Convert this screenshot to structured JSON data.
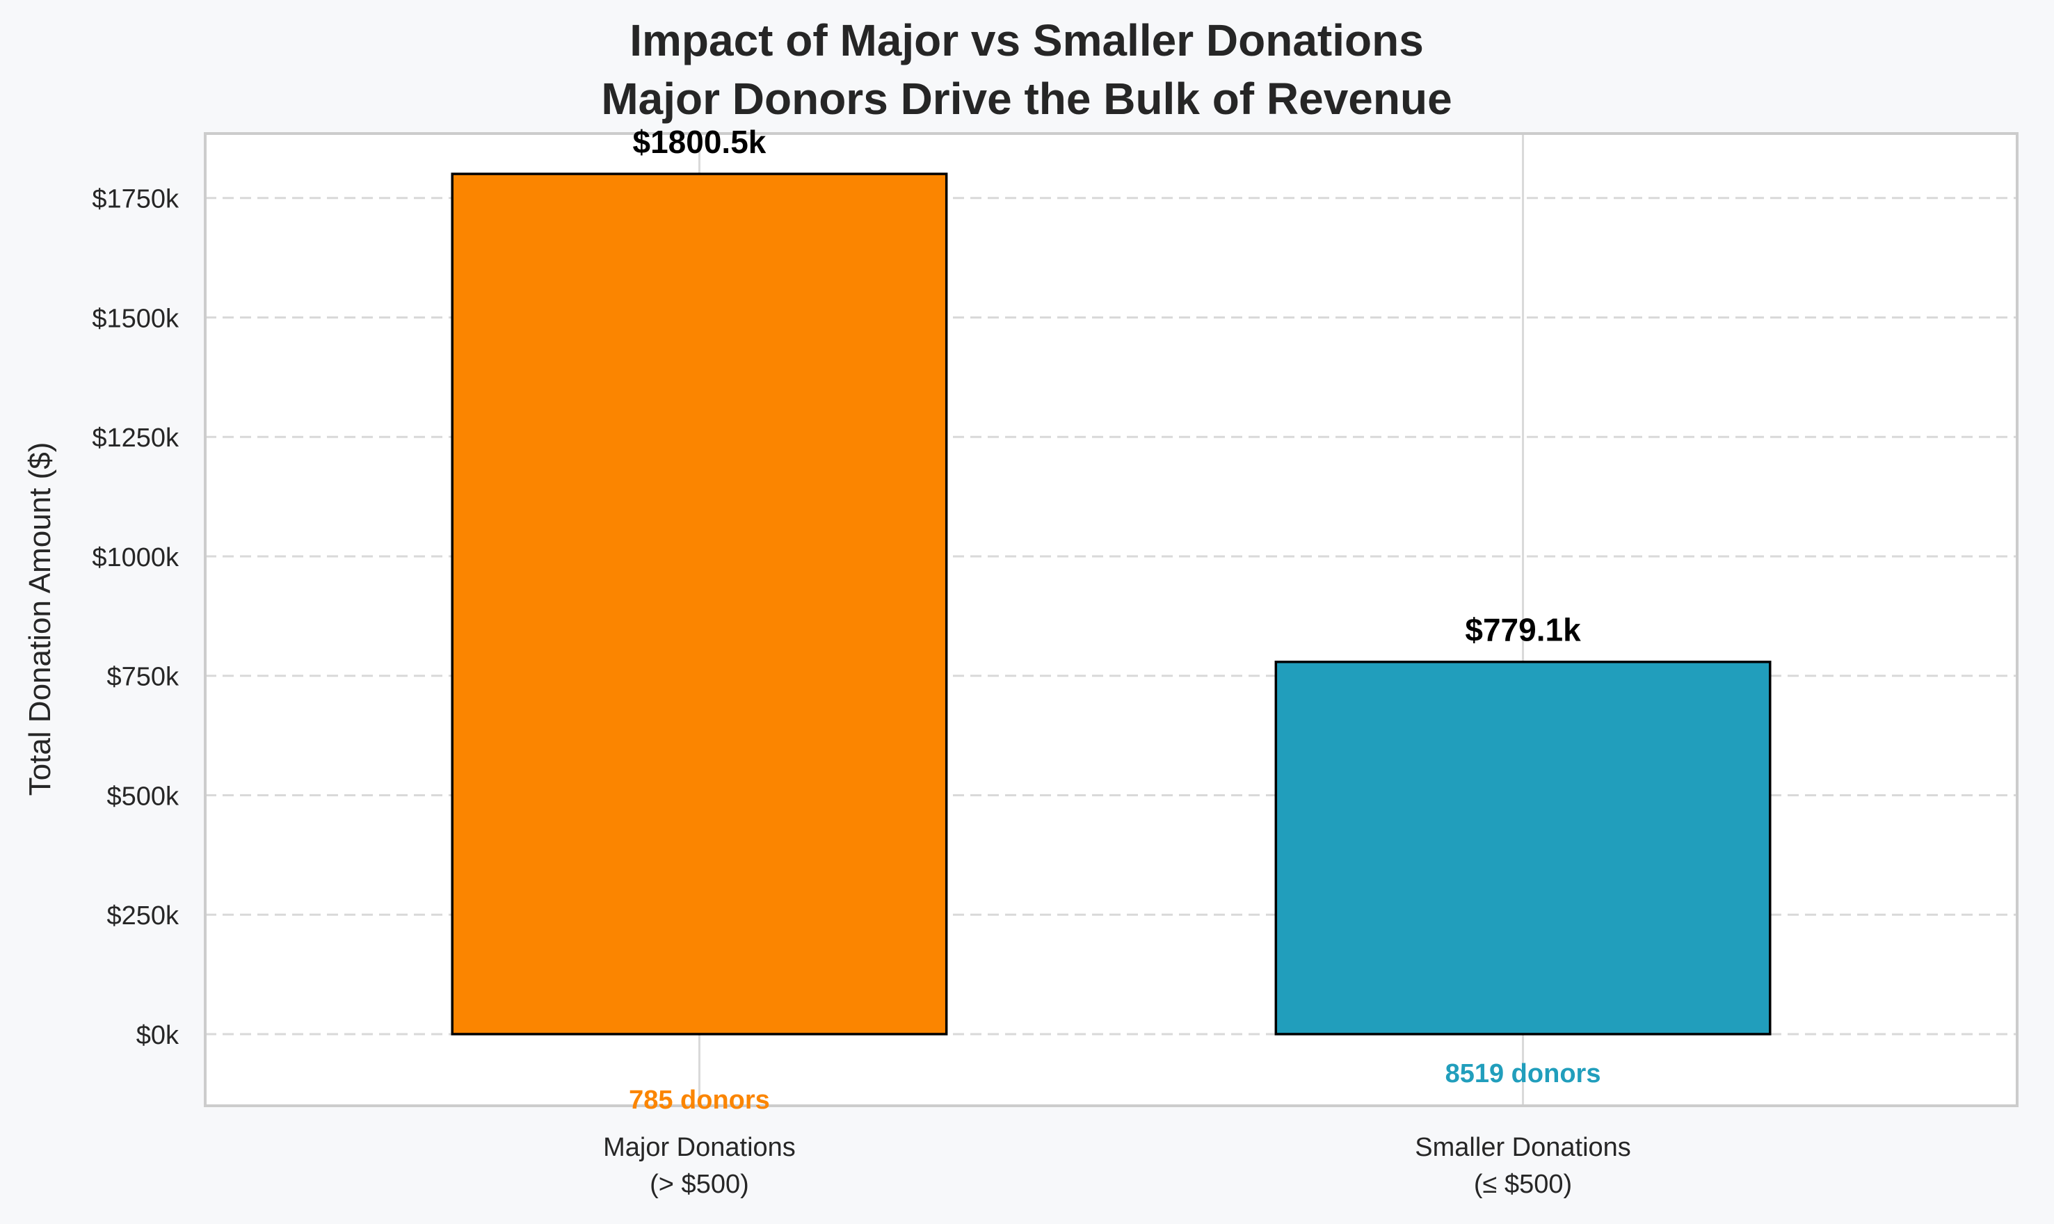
{
  "chart_data": {
    "type": "bar",
    "title": [
      "Impact of Major vs Smaller Donations",
      "Major Donors Drive the Bulk of Revenue"
    ],
    "ylabel": "Total Donation Amount ($)",
    "xlabel": "",
    "ylim": [
      -150,
      1885
    ],
    "yticks": [
      0,
      250,
      500,
      750,
      1000,
      1250,
      1500,
      1750
    ],
    "ytick_labels": [
      "$0k",
      "$250k",
      "$500k",
      "$750k",
      "$1000k",
      "$1250k",
      "$1500k",
      "$1750k"
    ],
    "categories": [
      [
        "Major Donations",
        "(> $500)"
      ],
      [
        "Smaller Donations",
        "(≤ $500)"
      ]
    ],
    "values": [
      1800.5,
      779.1
    ],
    "value_labels": [
      "$1800.5k",
      "$779.1k"
    ],
    "donor_counts": [
      785,
      8519
    ],
    "donor_labels": [
      "785 donors",
      "8519 donors"
    ],
    "colors": [
      "#fb8500",
      "#219ebc"
    ],
    "grid": true,
    "grid_axis": "y"
  }
}
